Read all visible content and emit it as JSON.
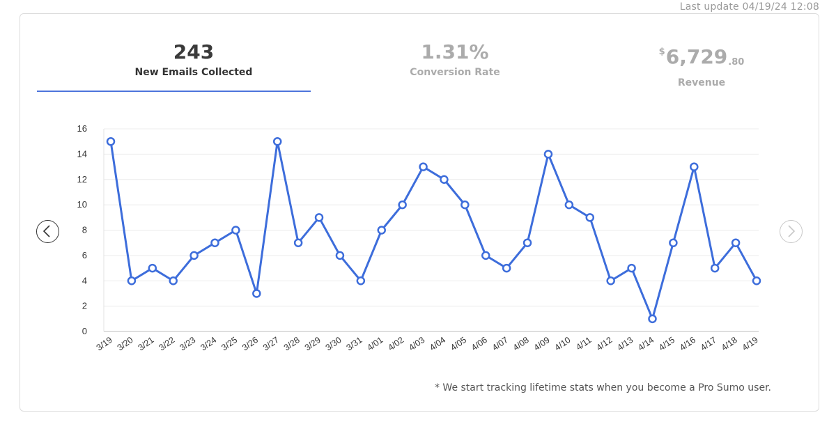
{
  "header": {
    "last_update": "Last update 04/19/24 12:08"
  },
  "stats": {
    "emails": {
      "value": "243",
      "label": "New Emails Collected",
      "active": true
    },
    "conversion": {
      "value": "1.31%",
      "label": "Conversion Rate",
      "active": false
    },
    "revenue": {
      "currency": "$",
      "whole": "6,729",
      "cents": ".80",
      "label": "Revenue",
      "active": false
    }
  },
  "nav": {
    "prev_icon": "chevron-left-icon",
    "next_icon": "chevron-right-icon"
  },
  "colors": {
    "accent": "#3d6ddb",
    "muted": "#ababab"
  },
  "footnote": "* We start tracking lifetime stats when you become a Pro Sumo user.",
  "chart_data": {
    "type": "line",
    "title": "",
    "xlabel": "",
    "ylabel": "",
    "ylim": [
      0,
      16
    ],
    "yticks": [
      0,
      2,
      4,
      6,
      8,
      10,
      12,
      14,
      16
    ],
    "grid": true,
    "categories": [
      "3/19",
      "3/20",
      "3/21",
      "3/22",
      "3/23",
      "3/24",
      "3/25",
      "3/26",
      "3/27",
      "3/28",
      "3/29",
      "3/30",
      "3/31",
      "4/01",
      "4/02",
      "4/03",
      "4/04",
      "4/05",
      "4/06",
      "4/07",
      "4/08",
      "4/09",
      "4/10",
      "4/11",
      "4/12",
      "4/13",
      "4/14",
      "4/15",
      "4/16",
      "4/17",
      "4/18",
      "4/19"
    ],
    "series": [
      {
        "values": [
          15,
          4,
          5,
          4,
          6,
          7,
          8,
          3,
          15,
          7,
          9,
          6,
          4,
          8,
          10,
          13,
          12,
          10,
          6,
          5,
          7,
          14,
          10,
          9,
          4,
          5,
          1,
          7,
          13,
          5,
          7,
          4
        ]
      }
    ]
  }
}
